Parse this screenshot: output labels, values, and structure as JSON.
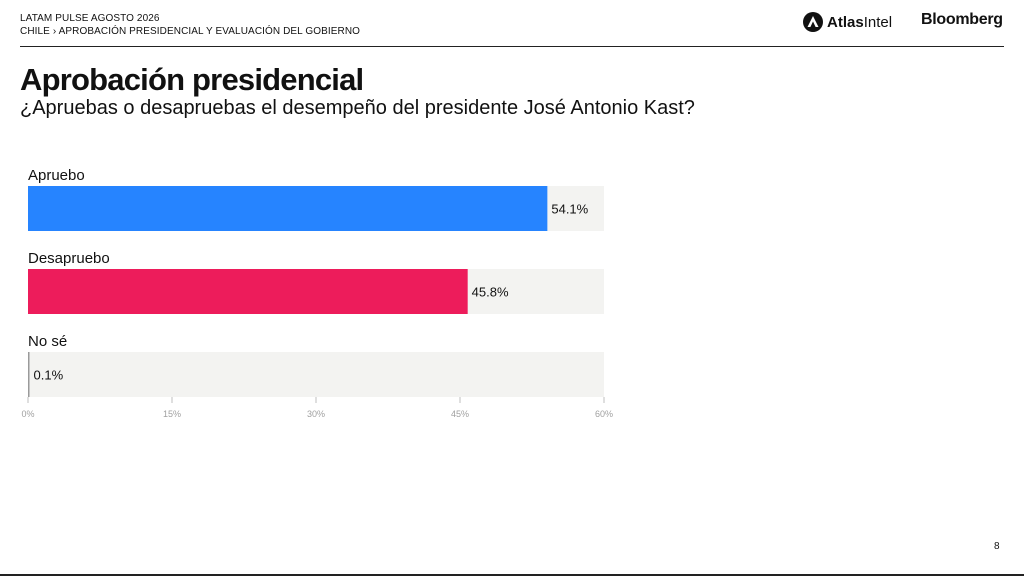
{
  "header": {
    "line1": "LATAM PULSE AGOSTO 2026",
    "line2": "CHILE › APROBACIÓN PRESIDENCIAL Y EVALUACIÓN DEL GOBIERNO"
  },
  "logos": {
    "atlas_bold": "Atlas",
    "atlas_regular": "Intel",
    "bloomberg": "Bloomberg"
  },
  "title": "Aprobación presidencial",
  "subtitle": "¿Apruebas o desapruebas el desempeño del presidente José Antonio Kast?",
  "chart_data": {
    "type": "bar",
    "orientation": "horizontal",
    "title": "Aprobación presidencial",
    "subtitle": "¿Apruebas o desapruebas el desempeño del presidente José Antonio Kast?",
    "categories": [
      "Apruebo",
      "Desapruebo",
      "No sé"
    ],
    "values": [
      54.1,
      45.8,
      0.1
    ],
    "value_labels": [
      "54.1%",
      "45.8%",
      "0.1%"
    ],
    "colors": [
      "#2684ff",
      "#ed1c5b",
      "#9a9a9a"
    ],
    "track_color": "#f3f3f1",
    "xlim": [
      0,
      60
    ],
    "xticks": [
      0,
      15,
      30,
      45,
      60
    ],
    "xtick_labels": [
      "0%",
      "15%",
      "30%",
      "45%",
      "60%"
    ],
    "xlabel": "",
    "ylabel": "",
    "grid": false,
    "legend": "none"
  },
  "page_number": "8"
}
